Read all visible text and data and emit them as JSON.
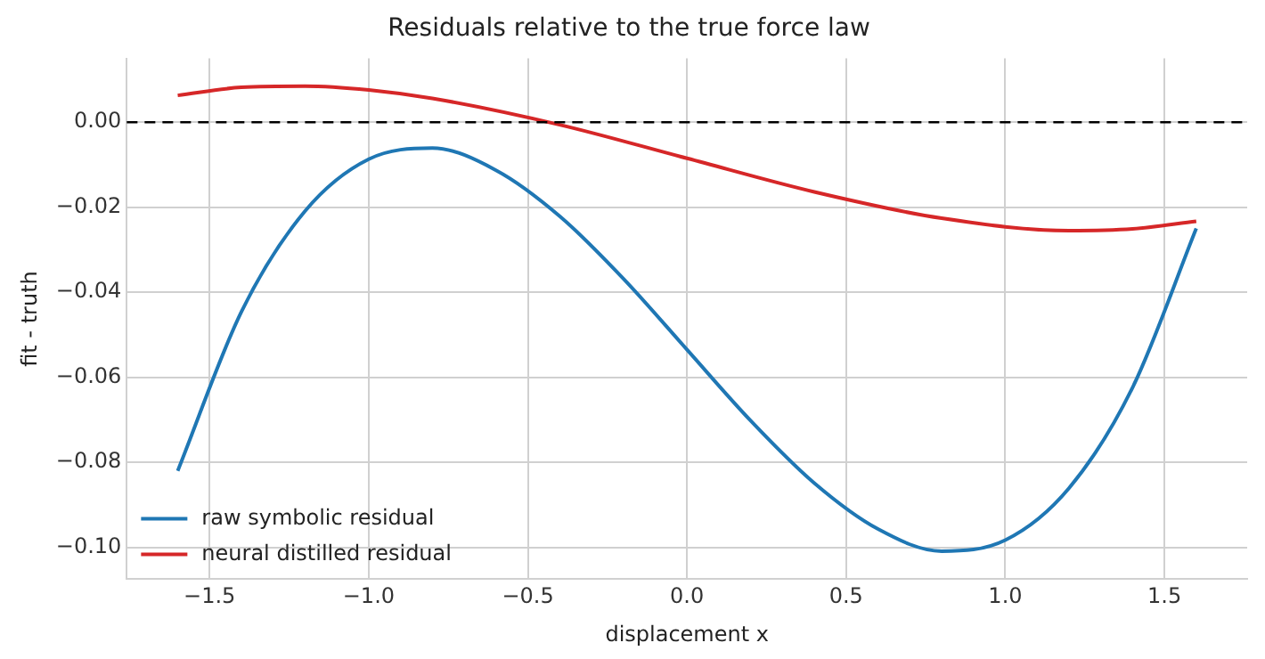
{
  "chart_data": {
    "type": "line",
    "title": "Residuals relative to the true force law",
    "xlabel": "displacement x",
    "ylabel": "fit - truth",
    "xlim": [
      -1.76,
      1.76
    ],
    "xticks": [
      {
        "value": -1.5,
        "label": "−1.5"
      },
      {
        "value": -1.0,
        "label": "−1.0"
      },
      {
        "value": -0.5,
        "label": "−0.5"
      },
      {
        "value": 0,
        "label": "0.0"
      },
      {
        "value": 0.5,
        "label": "0.5"
      },
      {
        "value": 1.0,
        "label": "1.0"
      },
      {
        "value": 1.5,
        "label": "1.5"
      }
    ],
    "ylim": [
      -0.1075,
      0.015
    ],
    "yticks": [
      {
        "value": -0.1,
        "label": "−0.10"
      },
      {
        "value": -0.08,
        "label": "−0.08"
      },
      {
        "value": -0.06,
        "label": "−0.06"
      },
      {
        "value": -0.04,
        "label": "−0.04"
      },
      {
        "value": -0.02,
        "label": "−0.02"
      },
      {
        "value": 0,
        "label": "0.00"
      }
    ],
    "series": [
      {
        "name": "raw symbolic residual",
        "color": "#1f77b4",
        "x": [
          -1.6,
          -1.4,
          -1.2,
          -1.0,
          -0.8,
          -0.6,
          -0.4,
          -0.2,
          0,
          0.2,
          0.4,
          0.6,
          0.8,
          1.0,
          1.2,
          1.4,
          1.6
        ],
        "values": [
          -0.082,
          -0.0446,
          -0.0209,
          -0.0087,
          -0.0061,
          -0.0113,
          -0.0221,
          -0.0368,
          -0.0535,
          -0.0702,
          -0.0849,
          -0.0957,
          -0.1009,
          -0.0983,
          -0.0861,
          -0.0624,
          -0.025
        ]
      },
      {
        "name": "neural distilled residual",
        "color": "#d62728",
        "x": [
          -1.6,
          -1.4,
          -1.2,
          -1.0,
          -0.8,
          -0.4,
          0,
          0.4,
          0.8,
          1.2,
          1.4,
          1.6
        ],
        "values": [
          0.0063,
          0.0082,
          0.0085,
          0.0076,
          0.0056,
          -0.0006,
          -0.0085,
          -0.0164,
          -0.0226,
          -0.0255,
          -0.0251,
          -0.0233
        ]
      }
    ],
    "ref_lines": [
      {
        "axis": "y",
        "value": 0,
        "color": "#000000",
        "line_style": "dashed"
      }
    ],
    "grid": true,
    "legend": "bottom left",
    "line_style": "solid",
    "marker": "none"
  }
}
